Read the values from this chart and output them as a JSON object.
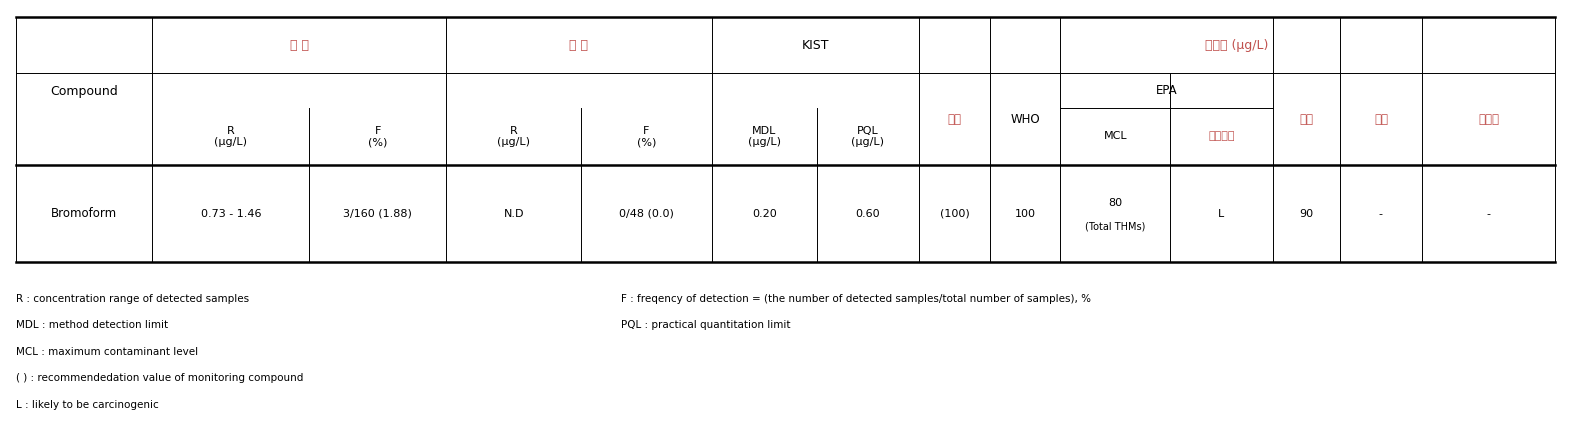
{
  "background_color": "#ffffff",
  "header_color_korean": "#c0504d",
  "header_color_blue": "#4472c4",
  "text_color_black": "#000000",
  "footnotes_left": [
    "R : concentration range of detected samples",
    "MDL : method detection limit",
    "MCL : maximum contaminant level",
    "( ) : recommendedation value of monitoring compound",
    "L : likely to be carcinogenic"
  ],
  "footnotes_right": [
    "F : freqency of detection = (the number of detected samples/total number of samples), %",
    "PQL : practical quantitation limit"
  ],
  "data_row": {
    "compound": "Bromoform",
    "R_treated": "0.73 - 1.46",
    "F_treated": "3/160 (1.88)",
    "R_raw": "N.D",
    "F_raw": "0/48 (0.0)",
    "MDL": "0.20",
    "PQL": "0.60",
    "korea": "(100)",
    "WHO": "100",
    "MCL_line1": "80",
    "MCL_line2": "(Total THMs)",
    "carcinogen": "L",
    "japan": "90",
    "australia": "-",
    "canada": "-"
  }
}
